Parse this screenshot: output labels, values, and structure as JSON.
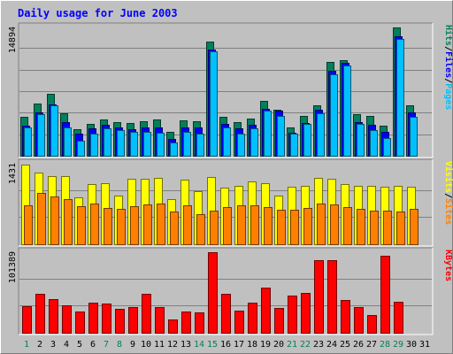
{
  "chart_data": {
    "type": "bar",
    "title": "Daily usage for June 2003",
    "x": [
      "1",
      "2",
      "3",
      "4",
      "5",
      "6",
      "7",
      "8",
      "9",
      "10",
      "11",
      "12",
      "13",
      "14",
      "15",
      "16",
      "17",
      "18",
      "19",
      "20",
      "21",
      "22",
      "23",
      "24",
      "25",
      "26",
      "27",
      "28",
      "29",
      "30",
      "31"
    ],
    "weekend_days": [
      "1",
      "7",
      "8",
      "14",
      "15",
      "21",
      "22",
      "28",
      "29"
    ],
    "panels": [
      {
        "name": "hits-files-pages",
        "ymax_label": "14894",
        "ymax": 14894,
        "legend": [
          "Pages",
          "/",
          "Files",
          "/",
          "Hits"
        ],
        "series": [
          {
            "name": "Hits",
            "values": [
              4500,
              6000,
              7100,
              4900,
              3100,
              3700,
              4200,
              3900,
              3800,
              4000,
              4200,
              2800,
              4100,
              4000,
              13200,
              4500,
              3900,
              4300,
              6300,
              5300,
              3300,
              4600,
              5800,
              10800,
              11000,
              4800,
              4600,
              3500,
              14800,
              5800,
              0
            ]
          },
          {
            "name": "Files",
            "values": [
              3500,
              5000,
              5900,
              3900,
              2500,
              3200,
              3600,
              3300,
              3100,
              3300,
              3300,
              1900,
              3300,
              3300,
              12200,
              3700,
              3200,
              3600,
              5400,
              5200,
              2700,
              3800,
              5300,
              9800,
              10700,
              3900,
              3600,
              2800,
              13800,
              5000,
              0
            ]
          },
          {
            "name": "Pages",
            "values": [
              3300,
              4800,
              5800,
              3300,
              1700,
              2600,
              3200,
              3000,
              2800,
              2800,
              2700,
              1500,
              2800,
              2600,
              12000,
              3300,
              2500,
              3200,
              5200,
              4600,
              2600,
              3700,
              4900,
              9400,
              10400,
              3700,
              3000,
              2000,
              13500,
              4500,
              0
            ]
          }
        ]
      },
      {
        "name": "visits-sites",
        "ymax_label": "1431",
        "ymax": 1431,
        "legend": [
          "Sites",
          "/",
          "Visits"
        ],
        "series": [
          {
            "name": "Visits",
            "values": [
              1400,
              1260,
              1200,
              1190,
              820,
              1050,
              1080,
              860,
              1150,
              1150,
              1160,
              790,
              1130,
              930,
              1180,
              1000,
              1020,
              1110,
              1070,
              860,
              1010,
              1030,
              1170,
              1150,
              1060,
              1030,
              1030,
              1010,
              1030,
              1010,
              0
            ]
          },
          {
            "name": "Sites",
            "values": [
              690,
              900,
              840,
              790,
              670,
              710,
              640,
              620,
              670,
              700,
              720,
              570,
              680,
              530,
              590,
              660,
              680,
              680,
              660,
              610,
              600,
              630,
              710,
              700,
              660,
              620,
              590,
              590,
              580,
              620,
              0
            ]
          }
        ]
      },
      {
        "name": "kbytes",
        "ymax_label": "101389",
        "ymax": 101389,
        "legend": [
          "KBytes"
        ],
        "series": [
          {
            "name": "KBytes",
            "values": [
              33000,
              48000,
              42000,
              34000,
              26000,
              37000,
              36000,
              30000,
              32000,
              48000,
              32000,
              17000,
              27000,
              25000,
              100000,
              49000,
              28000,
              38000,
              56000,
              31000,
              46000,
              50000,
              90000,
              90000,
              41000,
              32000,
              22000,
              96000,
              39000,
              0,
              0
            ]
          }
        ]
      }
    ]
  },
  "colors": {
    "background": "#c0c0c0",
    "frame_light": "#ffffff",
    "frame_dark": "#808080",
    "gridline": "#808080",
    "title": "#0000ff",
    "hits": "#00805c",
    "files": "#0000ff",
    "pages": "#00c0ff",
    "visits": "#ffff00",
    "sites": "#ff8000",
    "kbytes": "#ff0000",
    "weekday_label": "#000000",
    "weekend_label": "#00805c",
    "legend_separator": "#000000"
  }
}
